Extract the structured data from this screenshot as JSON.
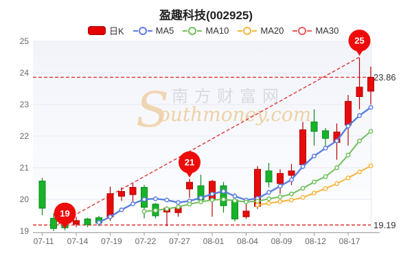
{
  "title": "盈趣科技(002925)",
  "legend": {
    "items": [
      {
        "label": "日K",
        "type": "candle",
        "color": "#e60000"
      },
      {
        "label": "MA5",
        "type": "ma",
        "color": "#5a7de0"
      },
      {
        "label": "MA10",
        "type": "ma",
        "color": "#6fbf5a"
      },
      {
        "label": "MA20",
        "type": "ma",
        "color": "#f5b53a"
      },
      {
        "label": "MA30",
        "type": "ma",
        "color": "#e85b5b"
      }
    ]
  },
  "watermark": {
    "swoosh": "S",
    "brand_cjk": "南方财富网",
    "brand_en": "outhmoney.com",
    "swoosh_color": "#f0d0a6",
    "color_cjk": "#d9dae2",
    "color_en": "#eed2a6"
  },
  "chart_data": {
    "type": "candlestick",
    "n_candles": 30,
    "x_axis": {
      "tick_labels": [
        "07-11",
        "07-14",
        "07-19",
        "07-22",
        "07-27",
        "08-01",
        "08-04",
        "08-09",
        "08-12",
        "08-17"
      ],
      "tick_indices": [
        0,
        3,
        6,
        9,
        12,
        15,
        18,
        21,
        24,
        27
      ]
    },
    "y_axis": {
      "min": 19,
      "max": 25,
      "ticks": [
        19,
        20,
        21,
        22,
        23,
        24,
        25
      ]
    },
    "ohlc": {
      "open": [
        20.58,
        19.4,
        19.2,
        19.22,
        19.38,
        19.42,
        19.45,
        20.1,
        20.15,
        20.38,
        19.85,
        19.6,
        19.58,
        20.33,
        20.43,
        20.0,
        20.43,
        19.98,
        19.45,
        19.78,
        20.9,
        20.5,
        20.76,
        21.1,
        22.45,
        22.17,
        21.8,
        22.35,
        23.25,
        23.42
      ],
      "close": [
        19.72,
        19.08,
        19.1,
        19.33,
        19.2,
        19.25,
        20.18,
        20.25,
        20.38,
        19.75,
        19.48,
        19.72,
        19.74,
        20.54,
        19.98,
        20.57,
        19.8,
        19.38,
        19.63,
        20.95,
        20.55,
        20.82,
        20.9,
        22.2,
        22.15,
        21.93,
        22.13,
        23.1,
        23.55,
        23.86
      ],
      "high": [
        20.68,
        19.55,
        19.28,
        19.45,
        19.42,
        19.48,
        20.4,
        20.38,
        20.5,
        20.46,
        19.88,
        19.78,
        19.86,
        20.65,
        20.78,
        20.62,
        20.55,
        20.2,
        19.97,
        21.05,
        21.15,
        20.95,
        21.12,
        22.45,
        22.85,
        22.26,
        22.4,
        23.3,
        24.48,
        24.2
      ],
      "low": [
        19.5,
        19.0,
        19.02,
        19.12,
        19.12,
        19.15,
        19.32,
        19.95,
        19.9,
        19.4,
        19.4,
        19.15,
        19.45,
        20.05,
        19.93,
        19.45,
        19.58,
        19.3,
        19.38,
        19.7,
        20.38,
        20.18,
        20.45,
        21.0,
        21.7,
        21.65,
        21.25,
        21.7,
        22.85,
        23.0
      ]
    },
    "series": [
      {
        "name": "MA5",
        "color": "#5a7de0",
        "width": 2.4,
        "start": 5,
        "values": [
          19.27,
          19.45,
          19.67,
          19.86,
          20.0,
          20.02,
          19.98,
          19.9,
          19.95,
          20.05,
          20.17,
          20.26,
          20.1,
          19.98,
          20.03,
          20.22,
          20.42,
          20.62,
          21.04,
          21.37,
          21.62,
          21.85,
          22.32,
          22.65,
          22.91
        ]
      },
      {
        "name": "MA10",
        "color": "#6fbf5a",
        "width": 2,
        "start": 9,
        "values": [
          19.62,
          19.65,
          19.7,
          19.76,
          19.85,
          19.92,
          19.98,
          20.0,
          19.96,
          19.92,
          19.94,
          20.02,
          20.08,
          20.17,
          20.35,
          20.55,
          20.72,
          21.0,
          21.4,
          21.85,
          22.15
        ]
      },
      {
        "name": "MA20",
        "color": "#f5b53a",
        "width": 2,
        "start": 19,
        "values": [
          19.82,
          19.88,
          19.93,
          19.98,
          20.06,
          20.2,
          20.34,
          20.5,
          20.68,
          20.87,
          21.06
        ]
      },
      {
        "name": "MA30",
        "color": "#e85b5b",
        "width": 2,
        "start": 0,
        "values": []
      }
    ],
    "annotations": {
      "balloons": [
        {
          "label": "19",
          "index": 2,
          "value": 19.05
        },
        {
          "label": "21",
          "index": 13,
          "value": 20.67
        },
        {
          "label": "25",
          "index": 28,
          "value": 24.52
        }
      ],
      "hlines": [
        {
          "value": 23.86,
          "label": "23.86"
        },
        {
          "value": 19.19,
          "label": "19.19"
        }
      ],
      "trendline": {
        "from_index": 1,
        "from_value": 19.13,
        "to_index": 28,
        "to_value": 24.5
      }
    },
    "colors": {
      "up": "#e60c0c",
      "up_stroke": "#b30000",
      "down": "#17b32a",
      "down_stroke": "#0c8a1e",
      "dashed": "#e03333",
      "balloon": "#ee0b0b",
      "grid": "#e7eaf1",
      "axis": "#999999",
      "plot_bg_top": "#f2f4fa",
      "plot_bg_bottom": "#fbfcfe",
      "label": "#666666",
      "hline_label": "#333333"
    }
  }
}
